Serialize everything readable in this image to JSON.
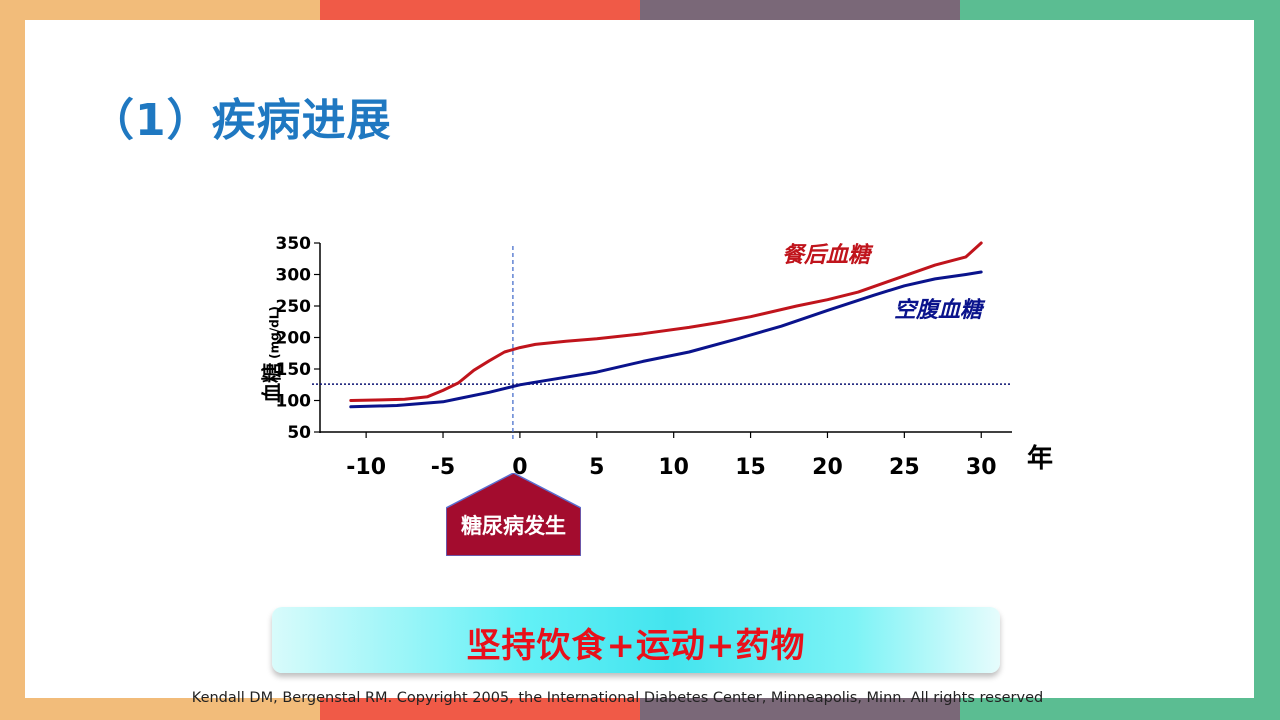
{
  "slide": {
    "title": "（1）疾病进展",
    "onset_label": "糖尿病发生",
    "banner_text": "坚持饮食+运动+药物",
    "credit": "Kendall DM, Bergenstal RM. Copyright 2005, the International Diabetes Center, Minneapolis, Minn. All rights reserved"
  },
  "frame_colors": [
    "#f2bc7a",
    "#f05a47",
    "#7a6878",
    "#5bbd92"
  ],
  "chart_data": {
    "type": "line",
    "ylabel": "血糖",
    "ylabel_unit": "(mg/dL)",
    "xlabel": "年",
    "x_ticks": [
      -10,
      -5,
      0,
      5,
      10,
      15,
      20,
      25,
      30
    ],
    "y_ticks": [
      50,
      100,
      150,
      200,
      250,
      300,
      350
    ],
    "xlim": [
      -13,
      32
    ],
    "ylim": [
      50,
      350
    ],
    "threshold_y": 126,
    "onset_x": 0,
    "series": [
      {
        "name": "餐后血糖",
        "color": "#c0141c",
        "x": [
          -11,
          -9,
          -7.5,
          -6,
          -5,
          -4,
          -3,
          -2,
          -1,
          0,
          1,
          3,
          5,
          8,
          11,
          13,
          15,
          18,
          20,
          22,
          25,
          27,
          29,
          30
        ],
        "y": [
          100,
          101,
          102,
          106,
          116,
          128,
          148,
          163,
          177,
          184,
          189,
          194,
          198,
          206,
          216,
          224,
          233,
          250,
          260,
          272,
          298,
          315,
          328,
          350
        ]
      },
      {
        "name": "空腹血糖",
        "color": "#0a138c",
        "x": [
          -11,
          -8,
          -5,
          -4,
          -2,
          0,
          2,
          5,
          8,
          11,
          14,
          17,
          20,
          23,
          25,
          27,
          29,
          30
        ],
        "y": [
          90,
          92,
          98,
          103,
          113,
          125,
          133,
          145,
          162,
          177,
          197,
          218,
          243,
          267,
          282,
          293,
          300,
          304
        ]
      }
    ]
  }
}
